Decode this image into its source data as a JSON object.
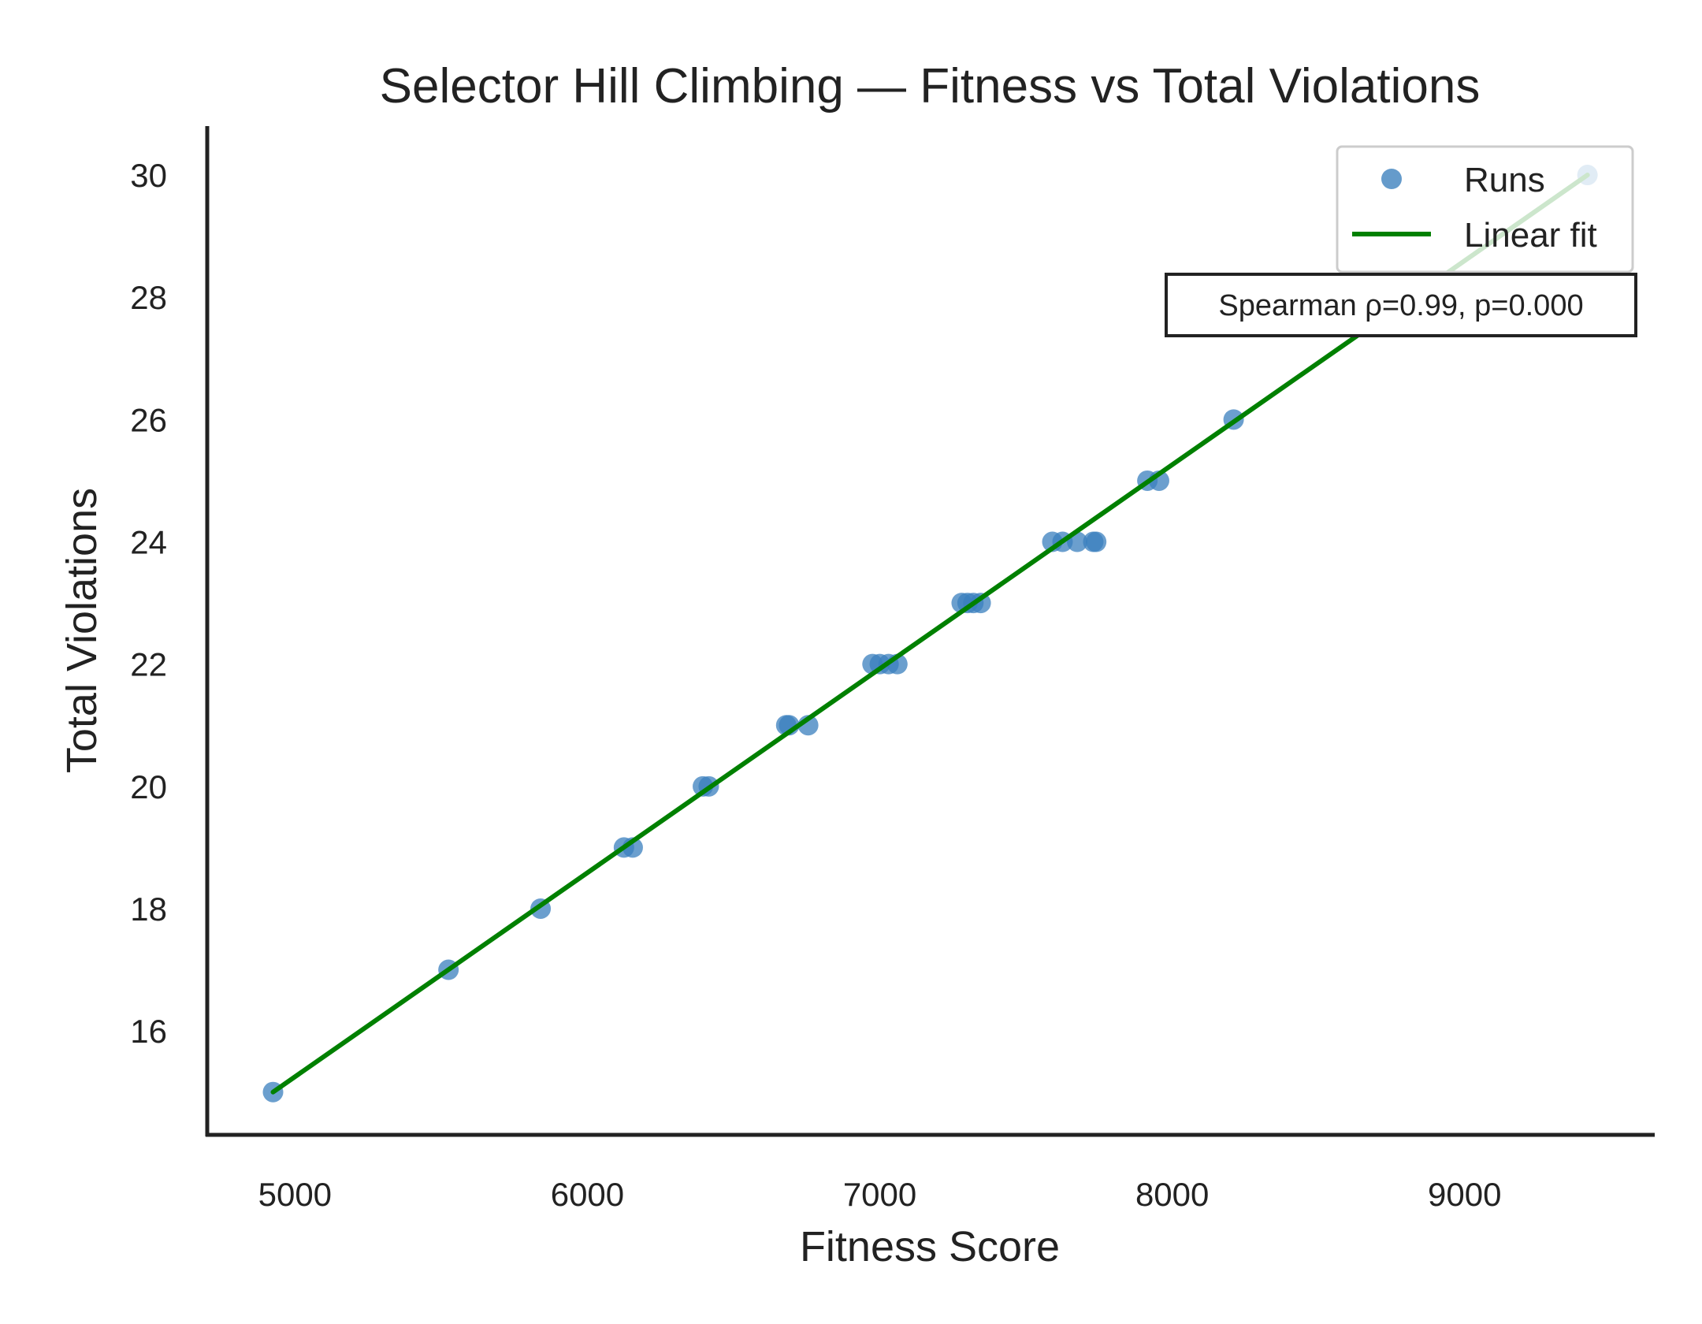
{
  "chart_data": {
    "type": "scatter",
    "title": "Selector Hill Climbing — Fitness vs Total Violations",
    "xlabel": "Fitness Score",
    "ylabel": "Total Violations",
    "xlim": [
      4700,
      9650
    ],
    "ylim": [
      14.3,
      30.8
    ],
    "xticks": [
      5000,
      6000,
      7000,
      8000,
      9000
    ],
    "yticks": [
      16,
      18,
      20,
      22,
      24,
      26,
      28,
      30
    ],
    "grid": false,
    "legend_position": "top-right",
    "series": [
      {
        "name": "Runs",
        "kind": "scatter",
        "color": "#3a7fbd",
        "points": [
          {
            "x": 4925,
            "y": 15
          },
          {
            "x": 5525,
            "y": 17
          },
          {
            "x": 5840,
            "y": 18
          },
          {
            "x": 6125,
            "y": 19
          },
          {
            "x": 6155,
            "y": 19
          },
          {
            "x": 6395,
            "y": 20
          },
          {
            "x": 6415,
            "y": 20
          },
          {
            "x": 6680,
            "y": 21
          },
          {
            "x": 6690,
            "y": 21
          },
          {
            "x": 6755,
            "y": 21
          },
          {
            "x": 6975,
            "y": 22
          },
          {
            "x": 7000,
            "y": 22
          },
          {
            "x": 7030,
            "y": 22
          },
          {
            "x": 7060,
            "y": 22
          },
          {
            "x": 7280,
            "y": 23
          },
          {
            "x": 7300,
            "y": 23
          },
          {
            "x": 7320,
            "y": 23
          },
          {
            "x": 7345,
            "y": 23
          },
          {
            "x": 7590,
            "y": 24
          },
          {
            "x": 7625,
            "y": 24
          },
          {
            "x": 7675,
            "y": 24
          },
          {
            "x": 7730,
            "y": 24
          },
          {
            "x": 7740,
            "y": 24
          },
          {
            "x": 7915,
            "y": 25
          },
          {
            "x": 7955,
            "y": 25
          },
          {
            "x": 8210,
            "y": 26
          },
          {
            "x": 8820,
            "y": 28
          },
          {
            "x": 9420,
            "y": 30
          }
        ]
      },
      {
        "name": "Linear fit",
        "kind": "line",
        "color": "#008000",
        "points": [
          {
            "x": 4925,
            "y": 15.0
          },
          {
            "x": 9420,
            "y": 30.0
          }
        ]
      }
    ],
    "annotation": "Spearman ρ=0.99, p=0.000"
  }
}
